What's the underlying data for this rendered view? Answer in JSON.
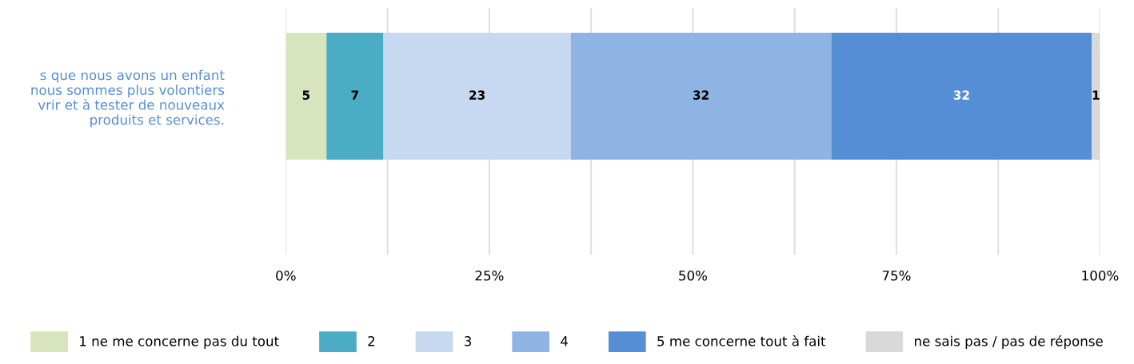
{
  "chart_data": {
    "type": "bar",
    "orientation": "horizontal",
    "stacked": true,
    "categories": [
      "s que nous avons un enfant\nnous sommes plus volontiers\nvrir et à tester de nouveaux\nproduits et services."
    ],
    "series": [
      {
        "name": "1 ne me concerne pas du tout",
        "color": "#d7e4bd",
        "values": [
          5
        ]
      },
      {
        "name": "2",
        "color": "#4bacc6",
        "values": [
          7
        ]
      },
      {
        "name": "3",
        "color": "#c6d9f1",
        "values": [
          23
        ]
      },
      {
        "name": "4",
        "color": "#8eb4e3",
        "values": [
          32
        ]
      },
      {
        "name": "5 me concerne tout à fait",
        "color": "#558ed5",
        "values": [
          32
        ]
      },
      {
        "name": "ne sais pas / pas de réponse",
        "color": "#d9d9d9",
        "values": [
          1
        ]
      }
    ],
    "xlim": [
      0,
      100
    ],
    "xticks": [
      {
        "value": 0,
        "label": "0%"
      },
      {
        "value": 12.5,
        "label": null
      },
      {
        "value": 25,
        "label": "25%"
      },
      {
        "value": 37.5,
        "label": null
      },
      {
        "value": 50,
        "label": "50%"
      },
      {
        "value": 62.5,
        "label": null
      },
      {
        "value": 75,
        "label": "75%"
      },
      {
        "value": 87.5,
        "label": null
      },
      {
        "value": 100,
        "label": "100%"
      }
    ],
    "grid": "x",
    "legend": "bottom",
    "data_labels": true
  }
}
